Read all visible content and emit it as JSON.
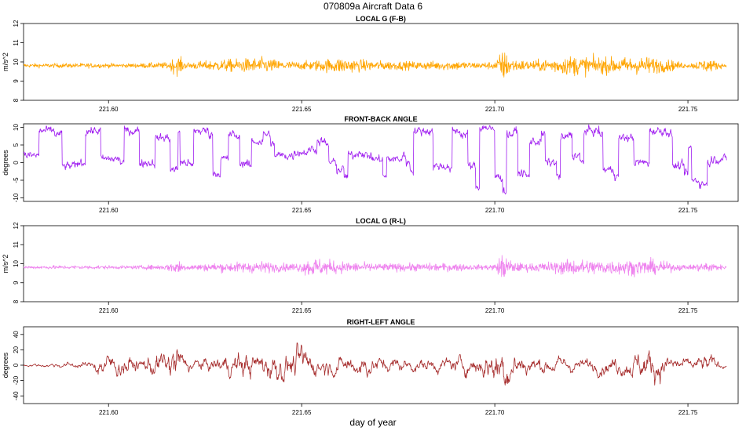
{
  "figure": {
    "title": "070809a    Aircraft Data 6",
    "xlabel": "day of year"
  },
  "chart_data": [
    {
      "type": "line",
      "title": "LOCAL G (F-B)",
      "ylabel": "m/s^2",
      "color": "#ffa500",
      "xlim": [
        221.578,
        221.763
      ],
      "ylim": [
        8,
        12
      ],
      "x_ticks": [
        221.6,
        221.65,
        221.7,
        221.75
      ],
      "x_tick_labels": [
        "221.60",
        "221.65",
        "221.70",
        "221.75"
      ],
      "y_ticks": [
        8,
        9,
        10,
        11,
        12
      ],
      "y_tick_labels": [
        "8",
        "9",
        "10",
        "11",
        "12"
      ],
      "x_range": [
        221.578,
        221.76
      ],
      "series": [
        {
          "baseline": 9.81,
          "noise": [
            [
              221.578,
              0.05
            ],
            [
              221.595,
              0.06
            ],
            [
              221.605,
              0.05
            ],
            [
              221.615,
              0.08
            ],
            [
              221.618,
              0.25
            ],
            [
              221.62,
              0.08
            ],
            [
              221.63,
              0.15
            ],
            [
              221.64,
              0.2
            ],
            [
              221.645,
              0.12
            ],
            [
              221.65,
              0.1
            ],
            [
              221.66,
              0.2
            ],
            [
              221.665,
              0.15
            ],
            [
              221.67,
              0.12
            ],
            [
              221.68,
              0.1
            ],
            [
              221.69,
              0.12
            ],
            [
              221.695,
              0.08
            ],
            [
              221.7,
              0.1
            ],
            [
              221.702,
              0.4
            ],
            [
              221.705,
              0.15
            ],
            [
              221.71,
              0.12
            ],
            [
              221.72,
              0.25
            ],
            [
              221.73,
              0.2
            ],
            [
              221.74,
              0.22
            ],
            [
              221.745,
              0.15
            ],
            [
              221.75,
              0.05
            ],
            [
              221.755,
              0.18
            ],
            [
              221.76,
              0.03
            ]
          ]
        }
      ]
    },
    {
      "type": "line",
      "title": "FRONT-BACK ANGLE",
      "ylabel": "degrees",
      "color": "#a020f0",
      "xlim": [
        221.578,
        221.763
      ],
      "ylim": [
        -11,
        11
      ],
      "x_ticks": [
        221.6,
        221.65,
        221.7,
        221.75
      ],
      "x_tick_labels": [
        "221.60",
        "221.65",
        "221.70",
        "221.75"
      ],
      "y_ticks": [
        -10,
        -5,
        0,
        5,
        10
      ],
      "y_tick_labels": [
        "-10",
        "-5",
        "0",
        "5",
        "10"
      ],
      "x_range": [
        221.578,
        221.76
      ],
      "series": [
        {
          "levels": [
            [
              221.578,
              2
            ],
            [
              221.581,
              2
            ],
            [
              221.582,
              9
            ],
            [
              221.586,
              8
            ],
            [
              221.588,
              -1
            ],
            [
              221.592,
              0
            ],
            [
              221.594,
              9
            ],
            [
              221.597,
              9
            ],
            [
              221.598,
              1
            ],
            [
              221.603,
              0
            ],
            [
              221.604,
              9
            ],
            [
              221.606,
              9
            ],
            [
              221.608,
              0
            ],
            [
              221.611,
              0
            ],
            [
              221.612,
              7
            ],
            [
              221.615,
              7
            ],
            [
              221.616,
              -2
            ],
            [
              221.618,
              9
            ],
            [
              221.6185,
              0
            ],
            [
              221.621,
              -1
            ],
            [
              221.622,
              9
            ],
            [
              221.626,
              8
            ],
            [
              221.627,
              -3
            ],
            [
              221.629,
              1
            ],
            [
              221.631,
              8
            ],
            [
              221.633,
              7
            ],
            [
              221.634,
              0
            ],
            [
              221.636,
              -1
            ],
            [
              221.637,
              6
            ],
            [
              221.639,
              6
            ],
            [
              221.64,
              8
            ],
            [
              221.642,
              5
            ],
            [
              221.643,
              2
            ],
            [
              221.648,
              3
            ],
            [
              221.652,
              4
            ],
            [
              221.654,
              6
            ],
            [
              221.656,
              5
            ],
            [
              221.657,
              0
            ],
            [
              221.659,
              -2
            ],
            [
              221.661,
              -4
            ],
            [
              221.662,
              2
            ],
            [
              221.664,
              3
            ],
            [
              221.666,
              2
            ],
            [
              221.668,
              1
            ],
            [
              221.67,
              1
            ],
            [
              221.671,
              -4
            ],
            [
              221.672,
              1
            ],
            [
              221.676,
              2
            ],
            [
              221.677,
              0
            ],
            [
              221.678,
              -2
            ],
            [
              221.679,
              9
            ],
            [
              221.683,
              9
            ],
            [
              221.684,
              -1
            ],
            [
              221.688,
              -2
            ],
            [
              221.689,
              9
            ],
            [
              221.691,
              8
            ],
            [
              221.693,
              -1
            ],
            [
              221.695,
              -7
            ],
            [
              221.696,
              10
            ],
            [
              221.699,
              9
            ],
            [
              221.7,
              -4
            ],
            [
              221.702,
              -8
            ],
            [
              221.703,
              8
            ],
            [
              221.705,
              9
            ],
            [
              221.706,
              -3
            ],
            [
              221.708,
              -4
            ],
            [
              221.709,
              6
            ],
            [
              221.712,
              8
            ],
            [
              221.713,
              0
            ],
            [
              221.716,
              -4
            ],
            [
              221.717,
              7
            ],
            [
              221.719,
              8
            ],
            [
              221.72,
              2
            ],
            [
              221.722,
              0
            ],
            [
              221.723,
              9
            ],
            [
              221.727,
              8
            ],
            [
              221.728,
              -2
            ],
            [
              221.731,
              -4
            ],
            [
              221.732,
              7
            ],
            [
              221.735,
              7
            ],
            [
              221.736,
              0
            ],
            [
              221.738,
              0
            ],
            [
              221.74,
              9
            ],
            [
              221.745,
              8
            ],
            [
              221.746,
              -1
            ],
            [
              221.749,
              -3
            ],
            [
              221.75,
              4
            ],
            [
              221.751,
              -5
            ],
            [
              221.753,
              -6
            ],
            [
              221.755,
              0
            ],
            [
              221.756,
              1
            ],
            [
              221.76,
              1
            ]
          ],
          "noise_amp": 1.2
        }
      ]
    },
    {
      "type": "line",
      "title": "LOCAL G (R-L)",
      "ylabel": "m/s^2",
      "color": "#ee82ee",
      "xlim": [
        221.578,
        221.763
      ],
      "ylim": [
        8,
        12
      ],
      "x_ticks": [
        221.6,
        221.65,
        221.7,
        221.75
      ],
      "x_tick_labels": [
        "221.60",
        "221.65",
        "221.70",
        "221.75"
      ],
      "y_ticks": [
        8,
        9,
        10,
        11,
        12
      ],
      "y_tick_labels": [
        "8",
        "9",
        "10",
        "11",
        "12"
      ],
      "x_range": [
        221.578,
        221.76
      ],
      "series": [
        {
          "baseline": 9.81,
          "noise": [
            [
              221.578,
              0.04
            ],
            [
              221.595,
              0.05
            ],
            [
              221.605,
              0.04
            ],
            [
              221.615,
              0.07
            ],
            [
              221.618,
              0.2
            ],
            [
              221.62,
              0.07
            ],
            [
              221.63,
              0.12
            ],
            [
              221.64,
              0.15
            ],
            [
              221.645,
              0.1
            ],
            [
              221.65,
              0.12
            ],
            [
              221.652,
              0.25
            ],
            [
              221.66,
              0.15
            ],
            [
              221.665,
              0.12
            ],
            [
              221.67,
              0.1
            ],
            [
              221.68,
              0.1
            ],
            [
              221.69,
              0.1
            ],
            [
              221.695,
              0.06
            ],
            [
              221.7,
              0.08
            ],
            [
              221.702,
              0.35
            ],
            [
              221.705,
              0.12
            ],
            [
              221.71,
              0.1
            ],
            [
              221.72,
              0.2
            ],
            [
              221.73,
              0.18
            ],
            [
              221.74,
              0.2
            ],
            [
              221.745,
              0.12
            ],
            [
              221.75,
              0.05
            ],
            [
              221.755,
              0.15
            ],
            [
              221.76,
              0.03
            ]
          ]
        }
      ]
    },
    {
      "type": "line",
      "title": "RIGHT-LEFT ANGLE",
      "ylabel": "degrees",
      "color": "#a52a2a",
      "xlim": [
        221.578,
        221.763
      ],
      "ylim": [
        -50,
        50
      ],
      "x_ticks": [
        221.6,
        221.65,
        221.7,
        221.75
      ],
      "x_tick_labels": [
        "221.60",
        "221.65",
        "221.70",
        "221.75"
      ],
      "y_ticks": [
        -40,
        -20,
        0,
        20,
        40
      ],
      "y_tick_labels": [
        "-40",
        "-20",
        "0",
        "20",
        "40"
      ],
      "x_range": [
        221.578,
        221.76
      ],
      "series": [
        {
          "noise": [
            [
              221.578,
              1
            ],
            [
              221.59,
              3
            ],
            [
              221.596,
              3
            ],
            [
              221.597,
              12
            ],
            [
              221.605,
              10
            ],
            [
              221.609,
              6
            ],
            [
              221.612,
              14
            ],
            [
              221.615,
              12
            ],
            [
              221.618,
              28
            ],
            [
              221.619,
              8
            ],
            [
              221.625,
              6
            ],
            [
              221.63,
              10
            ],
            [
              221.635,
              14
            ],
            [
              221.64,
              12
            ],
            [
              221.643,
              18
            ],
            [
              221.647,
              12
            ],
            [
              221.65,
              20
            ],
            [
              221.653,
              10
            ],
            [
              221.66,
              8
            ],
            [
              221.665,
              12
            ],
            [
              221.67,
              8
            ],
            [
              221.68,
              6
            ],
            [
              221.69,
              8
            ],
            [
              221.695,
              10
            ],
            [
              221.7,
              18
            ],
            [
              221.702,
              22
            ],
            [
              221.705,
              14
            ],
            [
              221.71,
              8
            ],
            [
              221.718,
              8
            ],
            [
              221.722,
              6
            ],
            [
              221.73,
              8
            ],
            [
              221.735,
              10
            ],
            [
              221.74,
              18
            ],
            [
              221.745,
              10
            ],
            [
              221.75,
              5
            ],
            [
              221.755,
              10
            ],
            [
              221.76,
              1
            ]
          ]
        }
      ]
    }
  ]
}
